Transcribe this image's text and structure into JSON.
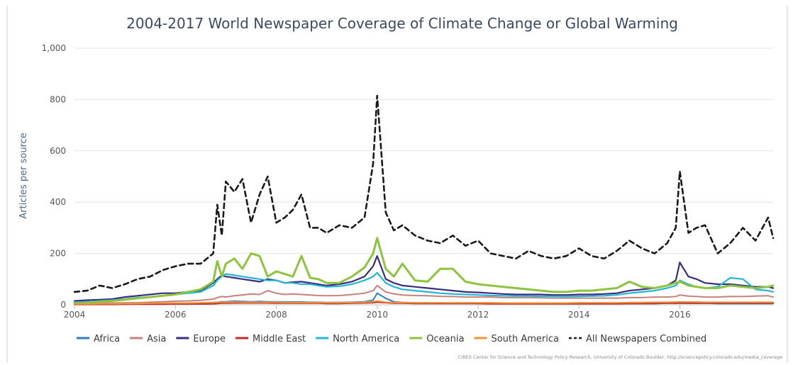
{
  "chart_data": {
    "type": "line",
    "title": "2004-2017 World Newspaper Coverage of Climate Change or Global Warming",
    "ylabel": "Articles per source",
    "xlabel": "",
    "xlim": [
      2004,
      2017.85
    ],
    "ylim": [
      0,
      1000
    ],
    "yticks": [
      0,
      200,
      400,
      600,
      800,
      1000
    ],
    "ytick_labels": [
      "0",
      "200",
      "400",
      "600",
      "800",
      "1,000"
    ],
    "xticks": [
      2004,
      2006,
      2008,
      2010,
      2012,
      2014,
      2016
    ],
    "xtick_labels": [
      "2004",
      "2006",
      "2008",
      "2010",
      "2012",
      "2014",
      "2016"
    ],
    "grid": "horizontal",
    "legend_position": "bottom",
    "credit": "CIRES Center for Science and Technology Policy Research, University of Colorado Boulder, http://sciencepolicy.colorado.edu/media_coverage",
    "x": [
      2004.0,
      2004.25,
      2004.5,
      2004.75,
      2005.0,
      2005.25,
      2005.5,
      2005.75,
      2006.0,
      2006.25,
      2006.5,
      2006.75,
      2006.83,
      2006.92,
      2007.0,
      2007.17,
      2007.33,
      2007.5,
      2007.67,
      2007.83,
      2008.0,
      2008.17,
      2008.33,
      2008.5,
      2008.67,
      2008.83,
      2009.0,
      2009.25,
      2009.5,
      2009.75,
      2009.92,
      2010.0,
      2010.17,
      2010.33,
      2010.5,
      2010.75,
      2011.0,
      2011.25,
      2011.5,
      2011.75,
      2012.0,
      2012.25,
      2012.5,
      2012.75,
      2013.0,
      2013.25,
      2013.5,
      2013.75,
      2014.0,
      2014.25,
      2014.5,
      2014.75,
      2015.0,
      2015.25,
      2015.5,
      2015.75,
      2015.92,
      2016.0,
      2016.17,
      2016.33,
      2016.5,
      2016.75,
      2017.0,
      2017.25,
      2017.5,
      2017.75,
      2017.85
    ],
    "series": [
      {
        "name": "Africa",
        "color": "#2f7ec1",
        "dash": "",
        "width": 2,
        "values": [
          2,
          2,
          3,
          3,
          4,
          4,
          5,
          5,
          6,
          6,
          7,
          9,
          10,
          12,
          12,
          14,
          13,
          12,
          13,
          12,
          12,
          11,
          11,
          11,
          10,
          10,
          9,
          9,
          10,
          12,
          18,
          45,
          25,
          12,
          9,
          8,
          8,
          7,
          7,
          6,
          6,
          6,
          5,
          5,
          5,
          5,
          5,
          5,
          5,
          5,
          5,
          5,
          5,
          5,
          5,
          6,
          6,
          6,
          6,
          6,
          6,
          5,
          5,
          5,
          5,
          5,
          5
        ]
      },
      {
        "name": "Asia",
        "color": "#c8807a",
        "dash": "",
        "width": 2,
        "values": [
          5,
          5,
          6,
          7,
          8,
          8,
          10,
          12,
          14,
          15,
          17,
          22,
          28,
          32,
          30,
          35,
          38,
          42,
          40,
          55,
          45,
          40,
          42,
          40,
          38,
          36,
          35,
          36,
          40,
          45,
          55,
          75,
          50,
          42,
          38,
          36,
          35,
          33,
          32,
          30,
          30,
          30,
          28,
          28,
          28,
          27,
          26,
          26,
          26,
          26,
          26,
          26,
          28,
          28,
          30,
          30,
          32,
          38,
          34,
          32,
          30,
          30,
          32,
          32,
          34,
          35,
          30
        ]
      },
      {
        "name": "Europe",
        "color": "#3b2c7e",
        "dash": "",
        "width": 2.2,
        "values": [
          15,
          18,
          20,
          22,
          30,
          35,
          40,
          45,
          45,
          50,
          55,
          85,
          100,
          115,
          110,
          105,
          100,
          95,
          90,
          100,
          95,
          85,
          88,
          90,
          85,
          80,
          75,
          80,
          90,
          110,
          150,
          190,
          100,
          85,
          75,
          70,
          65,
          60,
          55,
          50,
          48,
          45,
          42,
          40,
          40,
          40,
          38,
          38,
          40,
          40,
          42,
          45,
          55,
          60,
          65,
          75,
          95,
          165,
          110,
          100,
          85,
          80,
          80,
          75,
          70,
          70,
          65
        ]
      },
      {
        "name": "Middle East",
        "color": "#c22d2a",
        "dash": "",
        "width": 2,
        "values": [
          1,
          1,
          1,
          1,
          2,
          2,
          2,
          2,
          3,
          3,
          3,
          4,
          5,
          6,
          6,
          7,
          7,
          7,
          7,
          7,
          6,
          6,
          6,
          6,
          6,
          6,
          5,
          5,
          6,
          7,
          8,
          10,
          8,
          6,
          6,
          5,
          5,
          5,
          5,
          5,
          5,
          4,
          4,
          4,
          4,
          4,
          4,
          4,
          4,
          4,
          4,
          4,
          5,
          5,
          5,
          6,
          6,
          7,
          6,
          6,
          6,
          6,
          6,
          6,
          6,
          6,
          6
        ]
      },
      {
        "name": "North America",
        "color": "#25b5d5",
        "dash": "",
        "width": 2.2,
        "values": [
          10,
          12,
          15,
          18,
          22,
          28,
          30,
          35,
          40,
          45,
          50,
          75,
          95,
          110,
          120,
          115,
          110,
          105,
          100,
          95,
          95,
          85,
          85,
          80,
          80,
          75,
          70,
          72,
          80,
          95,
          110,
          125,
          85,
          70,
          60,
          55,
          50,
          45,
          42,
          40,
          38,
          36,
          35,
          34,
          34,
          33,
          33,
          32,
          33,
          34,
          35,
          38,
          45,
          50,
          55,
          65,
          75,
          95,
          80,
          70,
          65,
          70,
          105,
          100,
          60,
          55,
          50
        ]
      },
      {
        "name": "Oceania",
        "color": "#8cc43e",
        "dash": "",
        "width": 3,
        "values": [
          5,
          8,
          12,
          15,
          20,
          25,
          30,
          35,
          40,
          50,
          60,
          90,
          170,
          110,
          160,
          180,
          140,
          200,
          190,
          110,
          130,
          120,
          110,
          190,
          105,
          100,
          85,
          85,
          110,
          145,
          200,
          260,
          140,
          110,
          160,
          95,
          90,
          140,
          140,
          90,
          80,
          75,
          70,
          65,
          60,
          55,
          50,
          50,
          55,
          55,
          60,
          65,
          90,
          70,
          65,
          75,
          85,
          90,
          75,
          70,
          65,
          65,
          75,
          70,
          65,
          70,
          75
        ]
      },
      {
        "name": "South America",
        "color": "#f0963a",
        "dash": "",
        "width": 2,
        "values": [
          3,
          3,
          4,
          4,
          5,
          5,
          6,
          6,
          7,
          7,
          8,
          9,
          10,
          10,
          10,
          11,
          10,
          10,
          10,
          10,
          10,
          9,
          9,
          9,
          9,
          9,
          8,
          8,
          9,
          10,
          12,
          15,
          10,
          9,
          9,
          8,
          8,
          8,
          8,
          8,
          8,
          8,
          7,
          7,
          7,
          7,
          7,
          7,
          8,
          8,
          8,
          8,
          9,
          9,
          10,
          10,
          11,
          12,
          11,
          11,
          10,
          10,
          10,
          10,
          10,
          10,
          10
        ]
      },
      {
        "name": "All Newspapers Combined",
        "color": "#1a1a1a",
        "dash": "7,5",
        "width": 2.6,
        "values": [
          50,
          55,
          75,
          65,
          80,
          100,
          110,
          135,
          150,
          160,
          160,
          200,
          390,
          270,
          480,
          440,
          490,
          320,
          430,
          500,
          320,
          340,
          370,
          430,
          300,
          300,
          280,
          310,
          300,
          340,
          550,
          815,
          360,
          290,
          310,
          270,
          250,
          240,
          270,
          230,
          250,
          200,
          190,
          180,
          210,
          190,
          180,
          190,
          220,
          190,
          180,
          210,
          250,
          220,
          200,
          240,
          300,
          520,
          280,
          300,
          310,
          200,
          240,
          300,
          250,
          340,
          260
        ]
      }
    ]
  }
}
